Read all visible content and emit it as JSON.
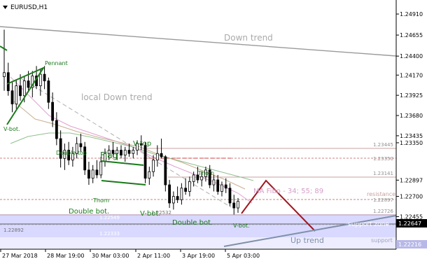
{
  "window": {
    "title": "EURUSD,H1",
    "menu_icon": "triangle-down-icon"
  },
  "chart_data": {
    "type": "candlestick",
    "symbol": "EURUSD",
    "timeframe": "H1",
    "ylim": [
      1.2206,
      1.2508
    ],
    "y_ticks": [
      1.2491,
      1.24655,
      1.244,
      1.2417,
      1.23925,
      1.2368,
      1.23435,
      1.2335,
      1.22897,
      1.227,
      1.22455
    ],
    "x_ticks": [
      "27 Mar 2018",
      "28 Mar 19:00",
      "30 Mar 03:00",
      "2 Apr 11:00",
      "3 Apr 19:00",
      "5 Apr 03:00"
    ],
    "current_price": "1.22647",
    "bottom_price_label": "1.22216",
    "level_labels": [
      {
        "label": "1.23445",
        "value": 1.23445
      },
      {
        "label": "1.23350",
        "value": 1.2335
      },
      {
        "label": "1.23141",
        "value": 1.23141
      },
      {
        "label": "1.22897",
        "value": 1.22897
      },
      {
        "label": "1.22726",
        "value": 1.22726
      },
      {
        "label": "1.22549",
        "value": 1.22549
      },
      {
        "label": "1.22532",
        "value": 1.22532
      },
      {
        "label": "1.22333",
        "value": 1.22333
      },
      {
        "label": "1.22892",
        "value": 1.22892
      }
    ],
    "annotations": {
      "down_trend": "Down trend",
      "local_down_trend": "local Down trend",
      "pennant": "Pennant",
      "v_bot_left": "V-bot.",
      "double_top": "Double top",
      "flag": "Flag",
      "v_top": "V-top",
      "thorn_1": "Thorn",
      "thorn_2": "Thorn",
      "double_bot_1": "Double bot.",
      "double_bot_2": "Double bot.",
      "v_bot_mid": "V-bot.",
      "v_bot_right": "V-bot.",
      "ma_fibo": "MA Fibo - 34; 55; 89",
      "resistance": "resistance",
      "support_zone": "support zone",
      "up_trend": "Up trend",
      "support": "support"
    },
    "colors": {
      "candle": "#000000",
      "annotation_green": "#1a7a1a",
      "trend_gray": "#9a9a9a",
      "level_line": "#c8a0a0",
      "dashed_red": "#d04040",
      "ma_fibo_label": "#d4a0c8",
      "support_zone": "#ccccff",
      "forecast": "#a01820",
      "up_trend_line": "#8090a8"
    },
    "candles": [
      [
        1.2415,
        1.2472,
        1.2398,
        1.242
      ],
      [
        1.242,
        1.2432,
        1.2392,
        1.2398
      ],
      [
        1.2398,
        1.241,
        1.2372,
        1.2382
      ],
      [
        1.2382,
        1.2412,
        1.2376,
        1.2404
      ],
      [
        1.2404,
        1.2418,
        1.2386,
        1.2392
      ],
      [
        1.2392,
        1.2416,
        1.2384,
        1.241
      ],
      [
        1.241,
        1.2422,
        1.2396,
        1.2402
      ],
      [
        1.2402,
        1.2422,
        1.239,
        1.2416
      ],
      [
        1.2416,
        1.2428,
        1.24,
        1.2404
      ],
      [
        1.2404,
        1.2424,
        1.2392,
        1.2418
      ],
      [
        1.2418,
        1.2428,
        1.24,
        1.241
      ],
      [
        1.241,
        1.2414,
        1.2376,
        1.2384
      ],
      [
        1.2384,
        1.2396,
        1.2354,
        1.2362
      ],
      [
        1.2362,
        1.2372,
        1.2332,
        1.234
      ],
      [
        1.234,
        1.235,
        1.2305,
        1.2316
      ],
      [
        1.2316,
        1.2334,
        1.2302,
        1.2326
      ],
      [
        1.2326,
        1.2336,
        1.2308,
        1.2314
      ],
      [
        1.2314,
        1.233,
        1.2306,
        1.2322
      ],
      [
        1.2322,
        1.2342,
        1.2316,
        1.2334
      ],
      [
        1.2334,
        1.2346,
        1.2324,
        1.233
      ],
      [
        1.233,
        1.2336,
        1.2296,
        1.2302
      ],
      [
        1.2302,
        1.2312,
        1.2284,
        1.2292
      ],
      [
        1.2292,
        1.2308,
        1.2286,
        1.2302
      ],
      [
        1.2302,
        1.2314,
        1.2292,
        1.2296
      ],
      [
        1.2296,
        1.2318,
        1.2292,
        1.2312
      ],
      [
        1.2312,
        1.2328,
        1.2306,
        1.2322
      ],
      [
        1.2322,
        1.2332,
        1.2314,
        1.2326
      ],
      [
        1.2326,
        1.2336,
        1.2318,
        1.2322
      ],
      [
        1.2322,
        1.233,
        1.2314,
        1.2326
      ],
      [
        1.2326,
        1.2332,
        1.2316,
        1.232
      ],
      [
        1.232,
        1.233,
        1.2312,
        1.2326
      ],
      [
        1.2326,
        1.2334,
        1.2318,
        1.2322
      ],
      [
        1.2322,
        1.233,
        1.2316,
        1.2326
      ],
      [
        1.2326,
        1.2338,
        1.232,
        1.2334
      ],
      [
        1.2334,
        1.2344,
        1.2326,
        1.2332
      ],
      [
        1.2332,
        1.2336,
        1.2286,
        1.2292
      ],
      [
        1.2292,
        1.2306,
        1.2284,
        1.23
      ],
      [
        1.23,
        1.232,
        1.2294,
        1.2314
      ],
      [
        1.2314,
        1.2332,
        1.2306,
        1.2322
      ],
      [
        1.2322,
        1.234,
        1.2316,
        1.2318
      ],
      [
        1.2318,
        1.232,
        1.2276,
        1.2284
      ],
      [
        1.2284,
        1.229,
        1.2256,
        1.2262
      ],
      [
        1.2262,
        1.2276,
        1.2254,
        1.227
      ],
      [
        1.227,
        1.2282,
        1.2262,
        1.2266
      ],
      [
        1.2266,
        1.2286,
        1.226,
        1.228
      ],
      [
        1.228,
        1.2292,
        1.2272,
        1.2276
      ],
      [
        1.2276,
        1.2294,
        1.227,
        1.2288
      ],
      [
        1.2288,
        1.23,
        1.2282,
        1.2296
      ],
      [
        1.2296,
        1.2306,
        1.2286,
        1.229
      ],
      [
        1.229,
        1.23,
        1.2282,
        1.2294
      ],
      [
        1.2294,
        1.2306,
        1.2288,
        1.2302
      ],
      [
        1.2302,
        1.2308,
        1.228,
        1.2284
      ],
      [
        1.2284,
        1.2296,
        1.2276,
        1.229
      ],
      [
        1.229,
        1.2296,
        1.2272,
        1.2276
      ],
      [
        1.2276,
        1.2288,
        1.227,
        1.2284
      ],
      [
        1.2284,
        1.2292,
        1.2274,
        1.228
      ],
      [
        1.228,
        1.2286,
        1.2258,
        1.2262
      ],
      [
        1.2262,
        1.2272,
        1.2248,
        1.2256
      ],
      [
        1.2256,
        1.2268,
        1.225,
        1.2264
      ]
    ]
  }
}
